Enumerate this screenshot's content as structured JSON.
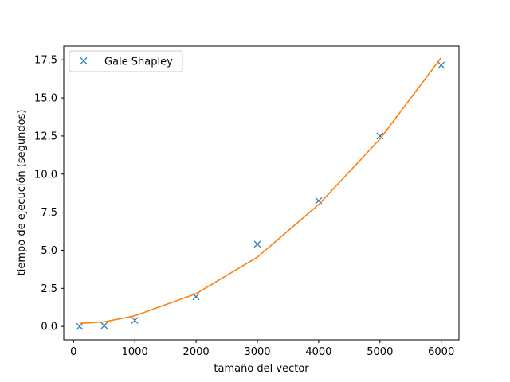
{
  "chart_data": {
    "type": "line",
    "xlabel": "tamaño del vector",
    "ylabel": "tiempo de ejecución (segundos)",
    "xlim": [
      -160,
      6290
    ],
    "ylim": [
      -0.88,
      18.4
    ],
    "x_ticks": [
      0,
      1000,
      2000,
      3000,
      4000,
      5000,
      6000
    ],
    "y_ticks": [
      0.0,
      2.5,
      5.0,
      7.5,
      10.0,
      12.5,
      15.0,
      17.5
    ],
    "x_tick_labels": [
      "0",
      "1000",
      "2000",
      "3000",
      "4000",
      "5000",
      "6000"
    ],
    "y_tick_labels": [
      "0.0",
      "2.5",
      "5.0",
      "7.5",
      "10.0",
      "12.5",
      "15.0",
      "17.5"
    ],
    "grid": false,
    "legend_position": "top-left",
    "series": [
      {
        "name": "Gale Shapley",
        "marker": "x",
        "color": "#1f77b4",
        "x": [
          100,
          500,
          1000,
          2000,
          3000,
          4000,
          5000,
          6000
        ],
        "y": [
          0.0,
          0.05,
          0.4,
          1.95,
          5.4,
          8.25,
          12.5,
          17.15
        ]
      },
      {
        "marker": "line",
        "color": "#ff7f0e",
        "x": [
          100,
          500,
          1000,
          2000,
          3000,
          4000,
          5000,
          6000
        ],
        "y": [
          0.2,
          0.3,
          0.7,
          2.15,
          4.55,
          8.0,
          12.3,
          17.65
        ]
      }
    ]
  }
}
